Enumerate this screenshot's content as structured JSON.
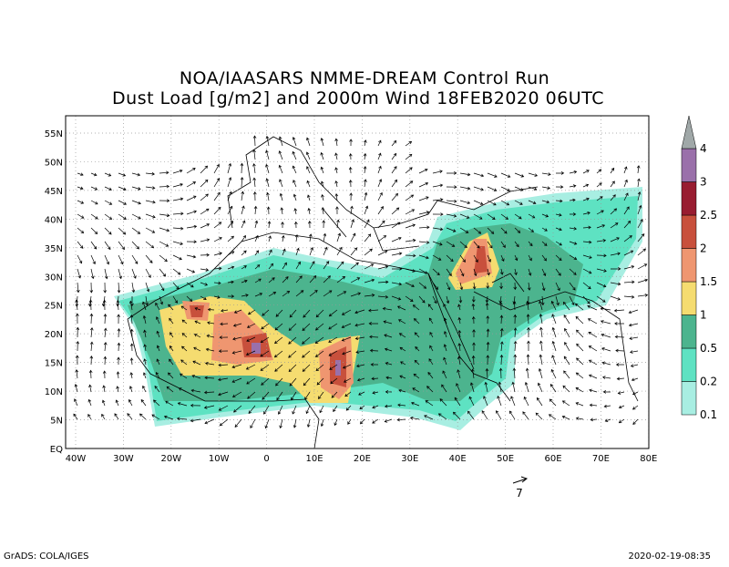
{
  "header": {
    "title": "NOA/IAASARS NMME-DREAM Control Run",
    "subtitle": "Dust Load [g/m2] and 2000m Wind 18FEB2020 06UTC"
  },
  "map": {
    "lat_labels": [
      "55N",
      "50N",
      "45N",
      "40N",
      "35N",
      "30N",
      "25N",
      "20N",
      "15N",
      "10N",
      "5N",
      "EQ"
    ],
    "lon_labels": [
      "40W",
      "30W",
      "20W",
      "10W",
      "0",
      "10E",
      "20E",
      "30E",
      "40E",
      "50E",
      "60E",
      "70E",
      "80E"
    ]
  },
  "colorbar": {
    "levels": [
      "0.1",
      "0.2",
      "0.5",
      "1",
      "1.5",
      "2",
      "2.5",
      "3",
      "4"
    ],
    "colors": [
      "#a8eee2",
      "#5ee2c2",
      "#4cb48e",
      "#f5dc70",
      "#ef9670",
      "#c8503c",
      "#981c30",
      "#9a70aa",
      "#a0a8a8"
    ]
  },
  "wind_reference": "7",
  "footer": {
    "left": "GrADS: COLA/IGES",
    "right": "2020-02-19-08:35"
  }
}
